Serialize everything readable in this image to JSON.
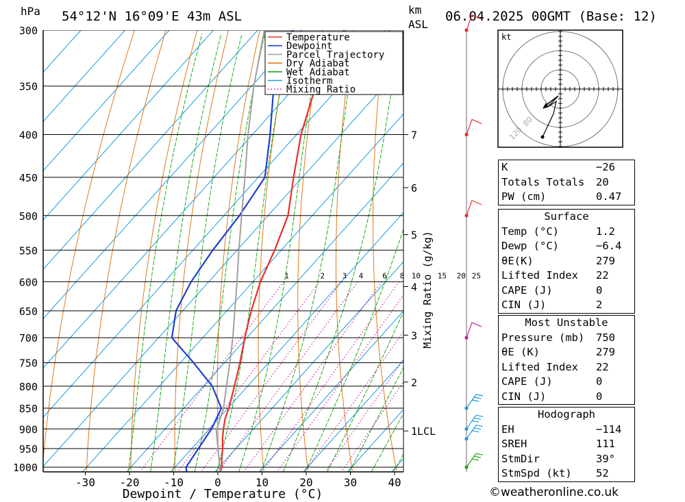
{
  "header": {
    "hpa_label": "hPa",
    "location": "54°12'N  16°09'E  43m  ASL",
    "km_label": "km",
    "asl_label": "ASL",
    "datetime": "06.04.2025  00GMT  (Base: 12)"
  },
  "footer": "©weatheronline.co.uk",
  "chart_data": {
    "type": "skew-t",
    "xlabel": "Dewpoint / Temperature (°C)",
    "xlim": [
      -40,
      40
    ],
    "xticks": [
      -30,
      -20,
      -10,
      0,
      10,
      20,
      30,
      40
    ],
    "ylabel_left": "hPa",
    "pressure_levels": [
      300,
      350,
      400,
      450,
      500,
      550,
      600,
      650,
      700,
      750,
      800,
      850,
      900,
      950,
      1000
    ],
    "height_axis": {
      "label": "km ASL",
      "ticks": [
        {
          "km": "7",
          "p": 400
        },
        {
          "km": "6",
          "p": 463
        },
        {
          "km": "5",
          "p": 527
        },
        {
          "km": "4",
          "p": 608
        },
        {
          "km": "3",
          "p": 695
        },
        {
          "km": "2",
          "p": 791
        },
        {
          "km": "1LCL",
          "p": 905
        }
      ]
    },
    "mixing_ratio": {
      "label": "Mixing Ratio (g/kg)",
      "values": [
        "1",
        "2",
        "3",
        "4",
        "6",
        "8",
        "10",
        "15",
        "20",
        "25"
      ]
    },
    "legend": {
      "placement": "top-center",
      "items": [
        {
          "name": "Temperature",
          "color": "#e8302a",
          "style": "solid"
        },
        {
          "name": "Dewpoint",
          "color": "#1c3fd0",
          "style": "solid"
        },
        {
          "name": "Parcel Trajectory",
          "color": "#a0a0a0",
          "style": "solid"
        },
        {
          "name": "Dry Adiabat",
          "color": "#e07818",
          "style": "solid"
        },
        {
          "name": "Wet Adiabat",
          "color": "#1aa81a",
          "style": "solid"
        },
        {
          "name": "Isotherm",
          "color": "#1a9ae0",
          "style": "solid"
        },
        {
          "name": "Mixing Ratio",
          "color": "#cc1a99",
          "style": "dotted"
        }
      ]
    },
    "series": [
      {
        "name": "Temperature",
        "color": "#e8302a",
        "points": [
          [
            1013,
            1.2
          ],
          [
            1000,
            0.6
          ],
          [
            975,
            -1.3
          ],
          [
            950,
            -3.0
          ],
          [
            925,
            -5.0
          ],
          [
            900,
            -6.8
          ],
          [
            875,
            -8.5
          ],
          [
            850,
            -9.8
          ],
          [
            800,
            -13.0
          ],
          [
            750,
            -16.5
          ],
          [
            700,
            -20.5
          ],
          [
            650,
            -24.5
          ],
          [
            600,
            -28.3
          ],
          [
            550,
            -31.5
          ],
          [
            500,
            -35.5
          ],
          [
            450,
            -42.0
          ],
          [
            400,
            -49.0
          ],
          [
            350,
            -55.5
          ],
          [
            300,
            -60.5
          ]
        ]
      },
      {
        "name": "Dewpoint",
        "color": "#1c3fd0",
        "points": [
          [
            1013,
            -6.4
          ],
          [
            1000,
            -7.5
          ],
          [
            950,
            -8.5
          ],
          [
            900,
            -9.5
          ],
          [
            850,
            -11.5
          ],
          [
            800,
            -18.0
          ],
          [
            750,
            -27.0
          ],
          [
            700,
            -37.0
          ],
          [
            650,
            -41.5
          ],
          [
            600,
            -44.0
          ],
          [
            550,
            -45.5
          ],
          [
            500,
            -46.5
          ],
          [
            450,
            -48.5
          ],
          [
            400,
            -56.0
          ],
          [
            350,
            -65.0
          ],
          [
            300,
            -72.0
          ]
        ]
      },
      {
        "name": "Parcel Trajectory",
        "color": "#a0a0a0",
        "points": [
          [
            1013,
            1.2
          ],
          [
            905,
            -8.0
          ],
          [
            850,
            -11.0
          ],
          [
            800,
            -14.8
          ],
          [
            750,
            -18.8
          ],
          [
            700,
            -23.2
          ],
          [
            650,
            -28.2
          ],
          [
            600,
            -33.6
          ],
          [
            550,
            -39.6
          ],
          [
            500,
            -46.0
          ],
          [
            450,
            -53.0
          ],
          [
            400,
            -61.0
          ],
          [
            350,
            -69.5
          ],
          [
            300,
            -78.5
          ]
        ]
      }
    ],
    "wind_profile": [
      {
        "p": 300,
        "color": "#e8302a"
      },
      {
        "p": 400,
        "color": "#e8302a"
      },
      {
        "p": 500,
        "color": "#e8302a"
      },
      {
        "p": 700,
        "color": "#cc1a99"
      },
      {
        "p": 850,
        "color": "#1a9ae0"
      },
      {
        "p": 900,
        "color": "#1a9ae0"
      },
      {
        "p": 925,
        "color": "#1a9ae0"
      },
      {
        "p": 1000,
        "color": "#1aa81a"
      }
    ],
    "hodograph": {
      "unit": "kt",
      "ring_labels": [
        "80",
        "120"
      ]
    }
  },
  "indices": {
    "general": [
      {
        "label": "K",
        "value": "−26"
      },
      {
        "label": "Totals Totals",
        "value": "20"
      },
      {
        "label": "PW (cm)",
        "value": "0.47"
      }
    ],
    "surface": {
      "title": "Surface",
      "rows": [
        {
          "label": "Temp (°C)",
          "value": "1.2"
        },
        {
          "label": "Dewp (°C)",
          "value": "−6.4"
        },
        {
          "label": "θE(K)",
          "value": "279"
        },
        {
          "label": "Lifted Index",
          "value": "22"
        },
        {
          "label": "CAPE (J)",
          "value": "0"
        },
        {
          "label": "CIN (J)",
          "value": "2"
        }
      ]
    },
    "most_unstable": {
      "title": "Most Unstable",
      "rows": [
        {
          "label": "Pressure (mb)",
          "value": "750"
        },
        {
          "label": "θE (K)",
          "value": "279"
        },
        {
          "label": "Lifted Index",
          "value": "22"
        },
        {
          "label": "CAPE (J)",
          "value": "0"
        },
        {
          "label": "CIN (J)",
          "value": "0"
        }
      ]
    },
    "hodograph": {
      "title": "Hodograph",
      "rows": [
        {
          "label": "EH",
          "value": "−114"
        },
        {
          "label": "SREH",
          "value": "111"
        },
        {
          "label": "StmDir",
          "value": "39°"
        },
        {
          "label": "StmSpd (kt)",
          "value": "52"
        }
      ]
    }
  }
}
